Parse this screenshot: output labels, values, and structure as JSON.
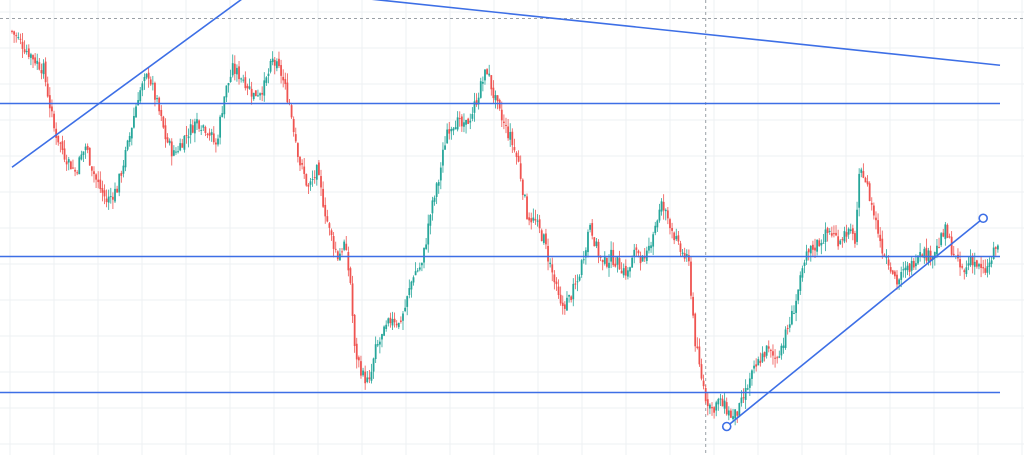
{
  "chart_data": {
    "type": "candlestick",
    "title": "",
    "xlabel": "",
    "ylabel": "",
    "ylim": [
      0,
      100
    ],
    "grid": true,
    "legend": "none",
    "colors": {
      "up": "#26a69a",
      "down": "#ef5350",
      "trendline": "#3d6fe6",
      "crosshair": "#9aa0a6"
    },
    "anchors": [
      [
        0,
        95
      ],
      [
        8,
        90
      ],
      [
        15,
        86
      ],
      [
        20,
        72
      ],
      [
        25,
        66
      ],
      [
        30,
        62
      ],
      [
        35,
        68
      ],
      [
        40,
        60
      ],
      [
        45,
        55
      ],
      [
        50,
        58
      ],
      [
        55,
        68
      ],
      [
        60,
        80
      ],
      [
        65,
        85
      ],
      [
        70,
        76
      ],
      [
        73,
        70
      ],
      [
        77,
        66
      ],
      [
        82,
        70
      ],
      [
        88,
        74
      ],
      [
        93,
        72
      ],
      [
        97,
        68
      ],
      [
        101,
        80
      ],
      [
        105,
        86
      ],
      [
        110,
        84
      ],
      [
        115,
        80
      ],
      [
        120,
        82
      ],
      [
        124,
        88
      ],
      [
        128,
        85
      ],
      [
        132,
        78
      ],
      [
        137,
        64
      ],
      [
        141,
        58
      ],
      [
        145,
        62
      ],
      [
        148,
        55
      ],
      [
        151,
        48
      ],
      [
        155,
        42
      ],
      [
        158,
        45
      ],
      [
        161,
        36
      ],
      [
        163,
        20
      ],
      [
        167,
        14
      ],
      [
        170,
        12
      ],
      [
        173,
        20
      ],
      [
        177,
        24
      ],
      [
        181,
        28
      ],
      [
        184,
        26
      ],
      [
        187,
        30
      ],
      [
        191,
        38
      ],
      [
        195,
        40
      ],
      [
        199,
        52
      ],
      [
        203,
        60
      ],
      [
        207,
        72
      ],
      [
        211,
        74
      ],
      [
        215,
        72
      ],
      [
        219,
        76
      ],
      [
        223,
        82
      ],
      [
        226,
        86
      ],
      [
        229,
        80
      ],
      [
        233,
        74
      ],
      [
        237,
        70
      ],
      [
        241,
        64
      ],
      [
        245,
        52
      ],
      [
        249,
        50
      ],
      [
        253,
        46
      ],
      [
        257,
        38
      ],
      [
        261,
        30
      ],
      [
        265,
        32
      ],
      [
        269,
        36
      ],
      [
        273,
        45
      ],
      [
        275,
        50
      ],
      [
        278,
        44
      ],
      [
        281,
        40
      ],
      [
        285,
        42
      ],
      [
        289,
        40
      ],
      [
        293,
        38
      ],
      [
        297,
        44
      ],
      [
        301,
        40
      ],
      [
        305,
        48
      ],
      [
        309,
        54
      ],
      [
        313,
        50
      ],
      [
        317,
        44
      ],
      [
        320,
        42
      ],
      [
        322,
        40
      ],
      [
        325,
        22
      ],
      [
        327,
        16
      ],
      [
        330,
        9
      ],
      [
        333,
        6
      ],
      [
        336,
        8
      ],
      [
        340,
        6
      ],
      [
        343,
        4
      ],
      [
        346,
        6
      ],
      [
        349,
        10
      ],
      [
        352,
        14
      ],
      [
        356,
        18
      ],
      [
        359,
        20
      ],
      [
        363,
        18
      ],
      [
        367,
        22
      ],
      [
        371,
        28
      ],
      [
        374,
        34
      ],
      [
        378,
        42
      ],
      [
        381,
        44
      ],
      [
        385,
        46
      ],
      [
        389,
        48
      ],
      [
        393,
        46
      ],
      [
        397,
        48
      ],
      [
        401,
        46
      ],
      [
        403,
        60
      ],
      [
        405,
        62
      ],
      [
        408,
        56
      ],
      [
        411,
        50
      ],
      [
        414,
        44
      ],
      [
        418,
        40
      ],
      [
        421,
        36
      ],
      [
        424,
        38
      ],
      [
        428,
        40
      ],
      [
        432,
        44
      ],
      [
        436,
        42
      ],
      [
        440,
        44
      ],
      [
        444,
        48
      ],
      [
        447,
        44
      ],
      [
        450,
        40
      ],
      [
        453,
        38
      ],
      [
        456,
        42
      ],
      [
        459,
        40
      ],
      [
        462,
        38
      ],
      [
        465,
        40
      ],
      [
        468,
        44
      ]
    ],
    "trend_lines": [
      {
        "from": [
          0,
          63
        ],
        "to": [
          152,
          118
        ]
      },
      {
        "from": [
          -30,
          113
        ],
        "to": [
          470,
          87
        ]
      },
      {
        "from": [
          340,
          2
        ],
        "to": [
          462,
          51
        ]
      },
      {
        "from": [
          -30,
          78
        ],
        "to": [
          470,
          78
        ]
      },
      {
        "from": [
          -30,
          42
        ],
        "to": [
          470,
          42
        ]
      },
      {
        "from": [
          -30,
          10
        ],
        "to": [
          470,
          10
        ]
      }
    ],
    "crosshair": {
      "x": 330,
      "y": 98
    }
  }
}
